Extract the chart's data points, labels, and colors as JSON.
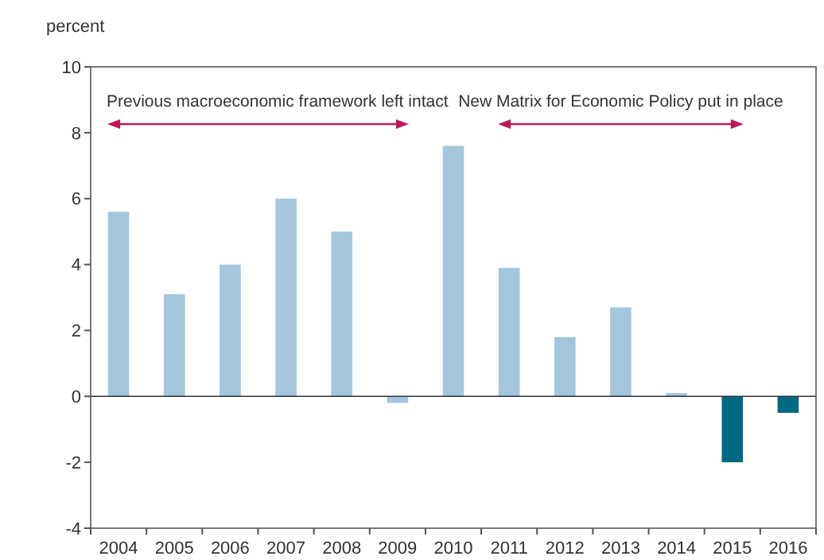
{
  "chart_data": {
    "type": "bar",
    "ylabel": "percent",
    "categories": [
      "2004",
      "2005",
      "2006",
      "2007",
      "2008",
      "2009",
      "2010",
      "2011",
      "2012",
      "2013",
      "2014",
      "2015",
      "2016"
    ],
    "values": [
      5.6,
      3.1,
      4.0,
      6.0,
      5.0,
      -0.2,
      7.6,
      3.9,
      1.8,
      2.7,
      0.1,
      -2.0,
      -0.5
    ],
    "colors": [
      "#a3c6dc",
      "#a3c6dc",
      "#a3c6dc",
      "#a3c6dc",
      "#a3c6dc",
      "#a3c6dc",
      "#a3c6dc",
      "#a3c6dc",
      "#a3c6dc",
      "#a3c6dc",
      "#a3c6dc",
      "#006982",
      "#006982"
    ],
    "ylim": [
      -4,
      10
    ],
    "yticks": [
      -4,
      -2,
      0,
      2,
      4,
      6,
      8,
      10
    ],
    "annotations": [
      "Previous macroeconomic framework left intact",
      "New Matrix for Economic Policy put in place"
    ]
  }
}
